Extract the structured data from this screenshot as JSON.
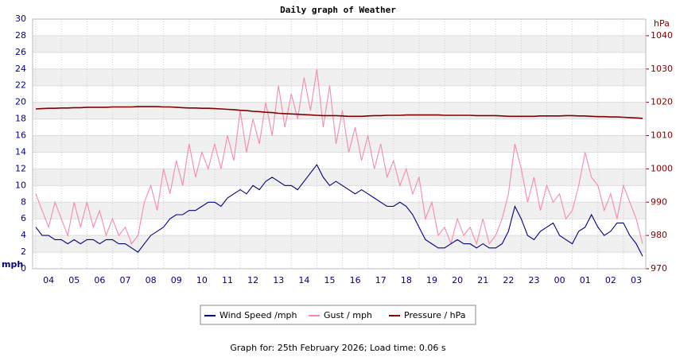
{
  "chart_data": {
    "type": "line",
    "title": "Daily graph of Weather",
    "x": [
      "",
      "",
      "04",
      null,
      null,
      null,
      "05",
      null,
      null,
      null,
      "06",
      null,
      null,
      null,
      "07",
      null,
      null,
      null,
      "08",
      null,
      null,
      null,
      "09",
      null,
      null,
      null,
      "10",
      null,
      null,
      null,
      "11",
      null,
      null,
      null,
      "12",
      null,
      null,
      null,
      "13",
      null,
      null,
      null,
      "14",
      null,
      null,
      null,
      "15",
      null,
      null,
      null,
      "16",
      null,
      null,
      null,
      "17",
      null,
      null,
      null,
      "18",
      null,
      null,
      null,
      "19",
      null,
      null,
      null,
      "20",
      null,
      null,
      null,
      "21",
      null,
      null,
      null,
      "22",
      null,
      null,
      null,
      "23",
      null,
      null,
      null,
      "00",
      null,
      null,
      null,
      "01",
      null,
      null,
      null,
      "02",
      null,
      null,
      null,
      "03",
      null
    ],
    "ylabel": "mph",
    "y2label": "hPa",
    "ylim": [
      0,
      30
    ],
    "yticks": [
      0,
      2,
      4,
      6,
      8,
      10,
      12,
      14,
      16,
      18,
      20,
      22,
      24,
      26,
      28,
      30
    ],
    "y2lim": [
      970,
      1045
    ],
    "y2ticks": [
      970,
      980,
      990,
      1000,
      1010,
      1020,
      1030,
      1040
    ],
    "grid": true,
    "series": [
      {
        "name": "Wind Speed /mph",
        "color": "#000080",
        "values": [
          5,
          4,
          4,
          3.5,
          3.5,
          3,
          3.5,
          3,
          3.5,
          3.5,
          3,
          3.5,
          3.5,
          3,
          3,
          2.5,
          2,
          3,
          4,
          4.5,
          5,
          6,
          6.5,
          6.5,
          7,
          7,
          7.5,
          8,
          8,
          7.5,
          8.5,
          9,
          9.5,
          9,
          10,
          9.5,
          10.5,
          11,
          10.5,
          10,
          10,
          9.5,
          10.5,
          11.5,
          12.5,
          11,
          10,
          10.5,
          10,
          9.5,
          9,
          9.5,
          9,
          8.5,
          8,
          7.5,
          7.5,
          8,
          7.5,
          6.5,
          5,
          3.5,
          3,
          2.5,
          2.5,
          3,
          3.5,
          3,
          3,
          2.5,
          3,
          2.5,
          2.5,
          3,
          4.5,
          7.5,
          6,
          4,
          3.5,
          4.5,
          5,
          5.5,
          4,
          3.5,
          3,
          4.5,
          5,
          6.5,
          5,
          4,
          4.5,
          5.5,
          5.5,
          4,
          3,
          1.5
        ]
      },
      {
        "name": "Gust / mph",
        "color": "#f78aaa",
        "values": [
          9,
          7,
          5,
          8,
          6,
          4,
          8,
          5,
          8,
          5,
          7,
          4,
          6,
          4,
          5,
          3,
          4,
          8,
          10,
          7,
          12,
          9,
          13,
          10,
          15,
          11,
          14,
          12,
          15,
          12,
          16,
          13,
          19,
          14,
          18,
          15,
          20,
          16,
          22,
          17,
          21,
          18,
          23,
          19,
          24,
          17,
          22,
          15,
          19,
          14,
          17,
          13,
          16,
          12,
          15,
          11,
          13,
          10,
          12,
          9,
          11,
          6,
          8,
          4,
          5,
          3,
          6,
          4,
          5,
          3,
          6,
          3,
          4,
          6,
          9,
          15,
          12,
          8,
          11,
          7,
          10,
          8,
          9,
          6,
          7,
          10,
          14,
          11,
          10,
          7,
          9,
          6,
          10,
          8,
          6,
          3
        ]
      },
      {
        "name": "Pressure / hPa",
        "color": "#800000",
        "axis": "y2",
        "values": [
          1018,
          1018.1,
          1018.2,
          1018.2,
          1018.3,
          1018.3,
          1018.4,
          1018.4,
          1018.5,
          1018.5,
          1018.5,
          1018.5,
          1018.6,
          1018.6,
          1018.6,
          1018.6,
          1018.7,
          1018.7,
          1018.7,
          1018.7,
          1018.6,
          1018.6,
          1018.5,
          1018.4,
          1018.3,
          1018.3,
          1018.2,
          1018.2,
          1018.1,
          1018,
          1017.9,
          1017.8,
          1017.6,
          1017.5,
          1017.3,
          1017.2,
          1017,
          1016.9,
          1016.7,
          1016.6,
          1016.5,
          1016.4,
          1016.3,
          1016.2,
          1016.1,
          1016,
          1016,
          1016,
          1015.9,
          1015.8,
          1015.8,
          1015.8,
          1015.9,
          1016,
          1016,
          1016.1,
          1016.1,
          1016.1,
          1016.2,
          1016.2,
          1016.2,
          1016.2,
          1016.2,
          1016.2,
          1016.1,
          1016.1,
          1016.1,
          1016.1,
          1016.1,
          1016,
          1016,
          1016,
          1016,
          1015.9,
          1015.8,
          1015.8,
          1015.8,
          1015.8,
          1015.8,
          1015.9,
          1015.9,
          1015.9,
          1015.9,
          1016,
          1016,
          1015.9,
          1015.9,
          1015.8,
          1015.7,
          1015.7,
          1015.6,
          1015.6,
          1015.5,
          1015.4,
          1015.3,
          1015.2
        ]
      }
    ]
  },
  "footer": "Graph for: 25th February 2026; Load time: 0.06 s"
}
